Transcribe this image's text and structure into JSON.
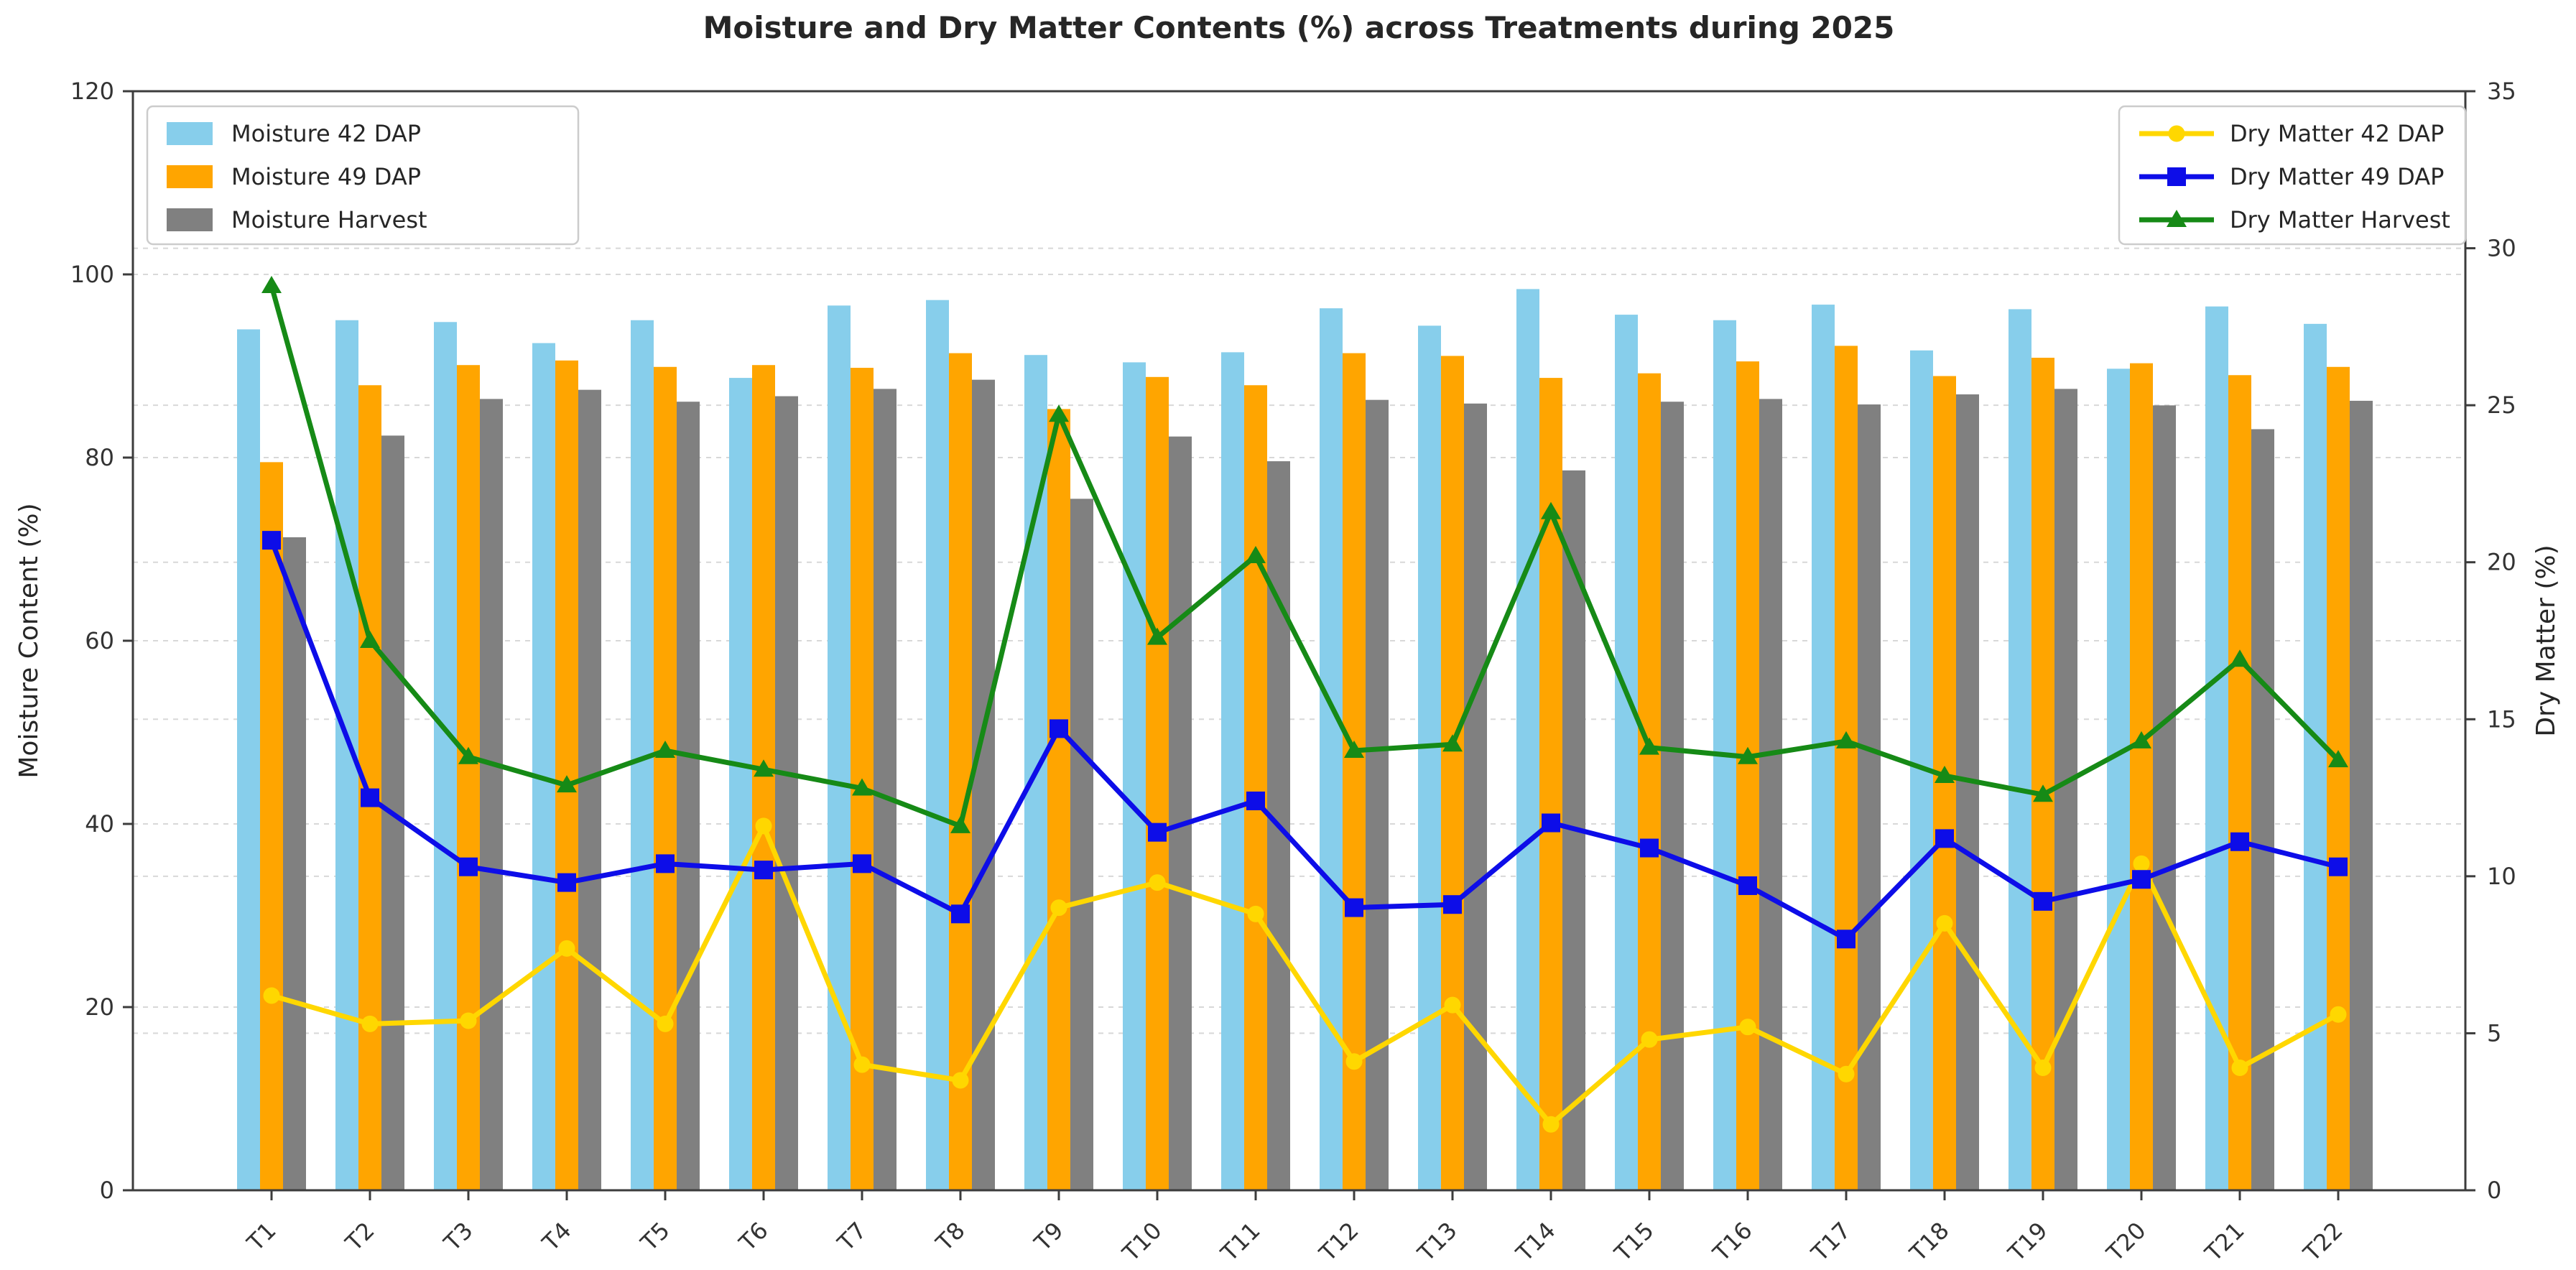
{
  "chart_data": {
    "type": "bar",
    "overlay": "line",
    "title": "Moisture and Dry Matter Contents (%) across Treatments during 2025",
    "categories": [
      "T1",
      "T2",
      "T3",
      "T4",
      "T5",
      "T6",
      "T7",
      "T8",
      "T9",
      "T10",
      "T11",
      "T12",
      "T13",
      "T14",
      "T15",
      "T16",
      "T17",
      "T18",
      "T19",
      "T20",
      "T21",
      "T22"
    ],
    "bar_series": [
      {
        "name": "Moisture 42 DAP",
        "axis": "left",
        "color": "#87CEEB",
        "values": [
          94.0,
          95.0,
          94.8,
          92.5,
          95.0,
          88.7,
          96.6,
          97.2,
          91.2,
          90.4,
          91.5,
          96.3,
          94.4,
          98.4,
          95.6,
          95.0,
          96.7,
          91.7,
          96.2,
          89.7,
          96.5,
          94.6
        ]
      },
      {
        "name": "Moisture 49 DAP",
        "axis": "left",
        "color": "#FFA500",
        "values": [
          79.5,
          87.9,
          90.1,
          90.6,
          89.9,
          90.1,
          89.8,
          91.4,
          85.3,
          88.8,
          87.9,
          91.4,
          91.1,
          88.7,
          89.2,
          90.5,
          92.2,
          88.9,
          90.9,
          90.3,
          89.0,
          89.9
        ]
      },
      {
        "name": "Moisture Harvest",
        "axis": "left",
        "color": "#808080",
        "values": [
          71.3,
          82.4,
          86.4,
          87.4,
          86.1,
          86.7,
          87.5,
          88.5,
          75.5,
          82.3,
          79.6,
          86.3,
          85.9,
          78.6,
          86.1,
          86.4,
          85.8,
          86.9,
          87.5,
          85.7,
          83.1,
          86.2
        ]
      }
    ],
    "line_series": [
      {
        "name": "Dry Matter 42 DAP",
        "axis": "right",
        "color": "#FFD700",
        "marker": "circle",
        "values": [
          6.2,
          5.3,
          5.4,
          7.7,
          5.3,
          11.6,
          4.0,
          3.5,
          9.0,
          9.8,
          8.8,
          4.1,
          5.9,
          2.1,
          4.8,
          5.2,
          3.7,
          8.5,
          3.9,
          10.4,
          3.9,
          5.6
        ]
      },
      {
        "name": "Dry Matter 49 DAP",
        "axis": "right",
        "color": "#0D0DE8",
        "marker": "square",
        "values": [
          20.7,
          12.5,
          10.3,
          9.8,
          10.4,
          10.2,
          10.4,
          8.8,
          14.7,
          11.4,
          12.4,
          9.0,
          9.1,
          11.7,
          10.9,
          9.7,
          8.0,
          11.2,
          9.2,
          9.9,
          11.1,
          10.3
        ]
      },
      {
        "name": "Dry Matter Harvest",
        "axis": "right",
        "color": "#168A16",
        "marker": "triangle",
        "values": [
          28.8,
          17.5,
          13.8,
          12.9,
          14.0,
          13.4,
          12.8,
          11.6,
          24.7,
          17.6,
          20.2,
          14.0,
          14.2,
          21.6,
          14.1,
          13.8,
          14.3,
          13.2,
          12.6,
          14.3,
          16.9,
          13.7
        ]
      }
    ],
    "left_axis": {
      "label": "Moisture Content (%)",
      "min": 0,
      "max": 120,
      "ticks": [
        0,
        20,
        40,
        60,
        80,
        100,
        120
      ]
    },
    "right_axis": {
      "label": "Dry Matter (%)",
      "min": 0,
      "max": 35,
      "ticks": [
        0,
        5,
        10,
        15,
        20,
        25,
        30,
        35
      ]
    },
    "grid": {
      "show": true,
      "left_step": 20,
      "right_step": 5
    },
    "legend_left_position": "upper left",
    "legend_right_position": "upper right"
  },
  "colors": {
    "background": "#ffffff",
    "text": "#262626",
    "tick_text": "#333333",
    "spine": "#3c3c3c",
    "grid": "#d8d8d8",
    "legend_border": "#cccccc",
    "legend_fill": "#ffffff"
  }
}
